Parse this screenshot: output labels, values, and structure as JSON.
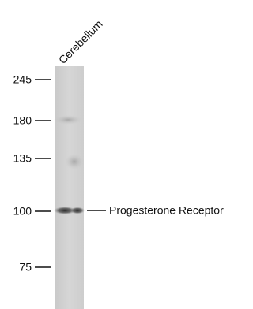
{
  "lane_label": "Cerebellum",
  "markers": [
    245,
    180,
    135,
    100,
    75
  ],
  "band_label": "Progesterone Receptor"
}
